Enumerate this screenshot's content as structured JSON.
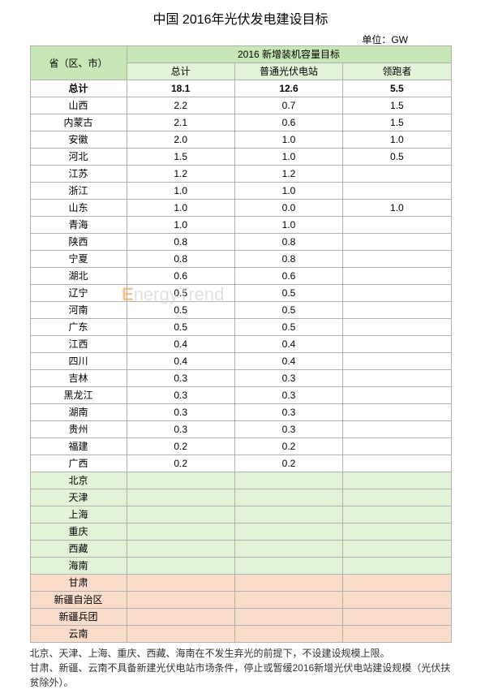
{
  "title": "中国 2016年光伏发电建设目标",
  "unit_label": "单位：GW",
  "columns": {
    "province": "省（区、市）",
    "group": "2016 新增装机容量目标",
    "total": "总计",
    "normal": "普通光伏电站",
    "leader": "领跑者"
  },
  "rows": [
    {
      "p": "总计",
      "t": "18.1",
      "n": "12.6",
      "l": "5.5",
      "cls": "row-total"
    },
    {
      "p": "山西",
      "t": "2.2",
      "n": "0.7",
      "l": "1.5"
    },
    {
      "p": "内蒙古",
      "t": "2.1",
      "n": "0.6",
      "l": "1.5"
    },
    {
      "p": "安徽",
      "t": "2.0",
      "n": "1.0",
      "l": "1.0"
    },
    {
      "p": "河北",
      "t": "1.5",
      "n": "1.0",
      "l": "0.5"
    },
    {
      "p": "江苏",
      "t": "1.2",
      "n": "1.2",
      "l": ""
    },
    {
      "p": "浙江",
      "t": "1.0",
      "n": "1.0",
      "l": ""
    },
    {
      "p": "山东",
      "t": "1.0",
      "n": "0.0",
      "l": "1.0"
    },
    {
      "p": "青海",
      "t": "1.0",
      "n": "1.0",
      "l": ""
    },
    {
      "p": "陕西",
      "t": "0.8",
      "n": "0.8",
      "l": ""
    },
    {
      "p": "宁夏",
      "t": "0.8",
      "n": "0.8",
      "l": ""
    },
    {
      "p": "湖北",
      "t": "0.6",
      "n": "0.6",
      "l": ""
    },
    {
      "p": "辽宁",
      "t": "0.5",
      "n": "0.5",
      "l": ""
    },
    {
      "p": "河南",
      "t": "0.5",
      "n": "0.5",
      "l": ""
    },
    {
      "p": "广东",
      "t": "0.5",
      "n": "0.5",
      "l": ""
    },
    {
      "p": "江西",
      "t": "0.4",
      "n": "0.4",
      "l": ""
    },
    {
      "p": "四川",
      "t": "0.4",
      "n": "0.4",
      "l": ""
    },
    {
      "p": "吉林",
      "t": "0.3",
      "n": "0.3",
      "l": ""
    },
    {
      "p": "黑龙江",
      "t": "0.3",
      "n": "0.3",
      "l": ""
    },
    {
      "p": "湖南",
      "t": "0.3",
      "n": "0.3",
      "l": ""
    },
    {
      "p": "贵州",
      "t": "0.3",
      "n": "0.3",
      "l": ""
    },
    {
      "p": "福建",
      "t": "0.2",
      "n": "0.2",
      "l": ""
    },
    {
      "p": "广西",
      "t": "0.2",
      "n": "0.2",
      "l": ""
    },
    {
      "p": "北京",
      "t": "",
      "n": "",
      "l": "",
      "cls": "row-green"
    },
    {
      "p": "天津",
      "t": "",
      "n": "",
      "l": "",
      "cls": "row-green"
    },
    {
      "p": "上海",
      "t": "",
      "n": "",
      "l": "",
      "cls": "row-green"
    },
    {
      "p": "重庆",
      "t": "",
      "n": "",
      "l": "",
      "cls": "row-green"
    },
    {
      "p": "西藏",
      "t": "",
      "n": "",
      "l": "",
      "cls": "row-green"
    },
    {
      "p": "海南",
      "t": "",
      "n": "",
      "l": "",
      "cls": "row-green"
    },
    {
      "p": "甘肃",
      "t": "",
      "n": "",
      "l": "",
      "cls": "row-peach"
    },
    {
      "p": "新疆自治区",
      "t": "",
      "n": "",
      "l": "",
      "cls": "row-peach"
    },
    {
      "p": "新疆兵团",
      "t": "",
      "n": "",
      "l": "",
      "cls": "row-peach"
    },
    {
      "p": "云南",
      "t": "",
      "n": "",
      "l": "",
      "cls": "row-peach"
    }
  ],
  "footnotes": [
    "北京、天津、上海、重庆、西藏、海南在不发生弃光的前提下，不设建设规模上限。",
    "甘肃、新疆、云南不具备新建光伏电站市场条件，停止或暂缓2016新增光伏电站建设规模（光伏扶贫除外）。"
  ],
  "watermark": "EnergyTrend",
  "colors": {
    "header_dark": "#c7e8b6",
    "header_light": "#e2f3d8",
    "peach": "#f9dcc9",
    "border": "#b0b0b0"
  }
}
